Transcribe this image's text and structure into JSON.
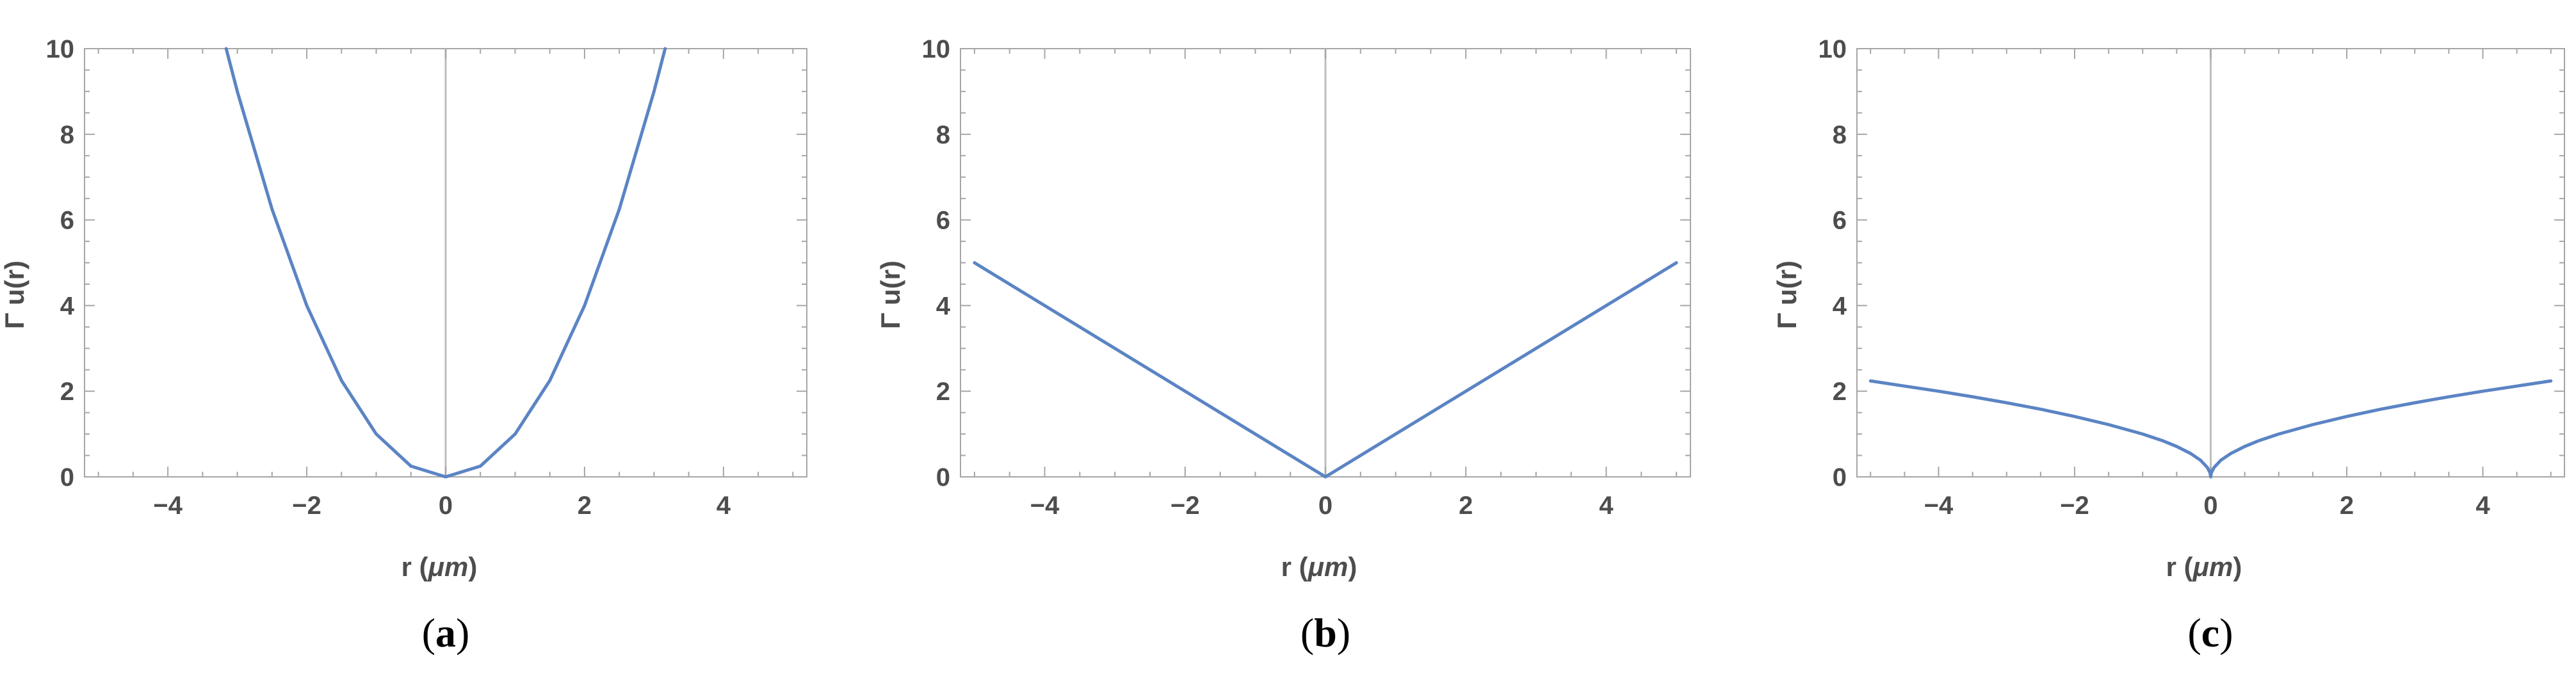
{
  "chart_data": [
    {
      "type": "line",
      "panel_label": {
        "open": "(",
        "letter": "a",
        "close": ")"
      },
      "xlabel_prefix": "r (",
      "xlabel_unit": "μm",
      "xlabel_suffix": ")",
      "ylabel": "Γ u(r)",
      "xlim": [
        -5.2,
        5.2
      ],
      "ylim": [
        0,
        10
      ],
      "xticks": [
        -4,
        -2,
        0,
        2,
        4
      ],
      "xtick_labels": [
        "−4",
        "−2",
        "0",
        "2",
        "4"
      ],
      "yticks": [
        0,
        2,
        4,
        6,
        8,
        10
      ],
      "ytick_labels": [
        "0",
        "2",
        "4",
        "6",
        "8",
        "10"
      ],
      "zero_line": true,
      "series": [
        {
          "color": "#5b84c4",
          "x": [
            -3.16,
            -3.0,
            -2.5,
            -2.0,
            -1.5,
            -1.0,
            -0.5,
            0.0,
            0.5,
            1.0,
            1.5,
            2.0,
            2.5,
            3.0,
            3.16
          ],
          "y": [
            10.0,
            9.0,
            6.25,
            4.0,
            2.25,
            1.0,
            0.25,
            0.0,
            0.25,
            1.0,
            2.25,
            4.0,
            6.25,
            9.0,
            10.0
          ]
        }
      ]
    },
    {
      "type": "line",
      "panel_label": {
        "open": "(",
        "letter": "b",
        "close": ")"
      },
      "xlabel_prefix": "r (",
      "xlabel_unit": "μm",
      "xlabel_suffix": ")",
      "ylabel": "Γ u(r)",
      "xlim": [
        -5.2,
        5.2
      ],
      "ylim": [
        0,
        10
      ],
      "xticks": [
        -4,
        -2,
        0,
        2,
        4
      ],
      "xtick_labels": [
        "−4",
        "−2",
        "0",
        "2",
        "4"
      ],
      "yticks": [
        0,
        2,
        4,
        6,
        8,
        10
      ],
      "ytick_labels": [
        "0",
        "2",
        "4",
        "6",
        "8",
        "10"
      ],
      "zero_line": true,
      "series": [
        {
          "color": "#5b84c4",
          "x": [
            -5.0,
            0.0,
            5.0
          ],
          "y": [
            5.0,
            0.0,
            5.0
          ]
        }
      ]
    },
    {
      "type": "line",
      "panel_label": {
        "open": "(",
        "letter": "c",
        "close": ")"
      },
      "xlabel_prefix": "r (",
      "xlabel_unit": "μm",
      "xlabel_suffix": ")",
      "ylabel": "Γ u(r)",
      "xlim": [
        -5.2,
        5.2
      ],
      "ylim": [
        0,
        10
      ],
      "xticks": [
        -4,
        -2,
        0,
        2,
        4
      ],
      "xtick_labels": [
        "−4",
        "−2",
        "0",
        "2",
        "4"
      ],
      "yticks": [
        0,
        2,
        4,
        6,
        8,
        10
      ],
      "ytick_labels": [
        "0",
        "2",
        "4",
        "6",
        "8",
        "10"
      ],
      "zero_line": true,
      "series": [
        {
          "color": "#5b84c4",
          "x": [
            -5.0,
            -4.5,
            -4.0,
            -3.5,
            -3.0,
            -2.5,
            -2.0,
            -1.5,
            -1.0,
            -0.7,
            -0.5,
            -0.3,
            -0.15,
            -0.05,
            -0.01,
            0.0,
            0.01,
            0.05,
            0.15,
            0.3,
            0.5,
            0.7,
            1.0,
            1.5,
            2.0,
            2.5,
            3.0,
            3.5,
            4.0,
            4.5,
            5.0
          ],
          "y": [
            2.24,
            2.12,
            2.0,
            1.87,
            1.73,
            1.58,
            1.41,
            1.22,
            1.0,
            0.84,
            0.71,
            0.55,
            0.39,
            0.22,
            0.1,
            0.0,
            0.1,
            0.22,
            0.39,
            0.55,
            0.71,
            0.84,
            1.0,
            1.22,
            1.41,
            1.58,
            1.73,
            1.87,
            2.0,
            2.12,
            2.24
          ]
        }
      ]
    }
  ]
}
